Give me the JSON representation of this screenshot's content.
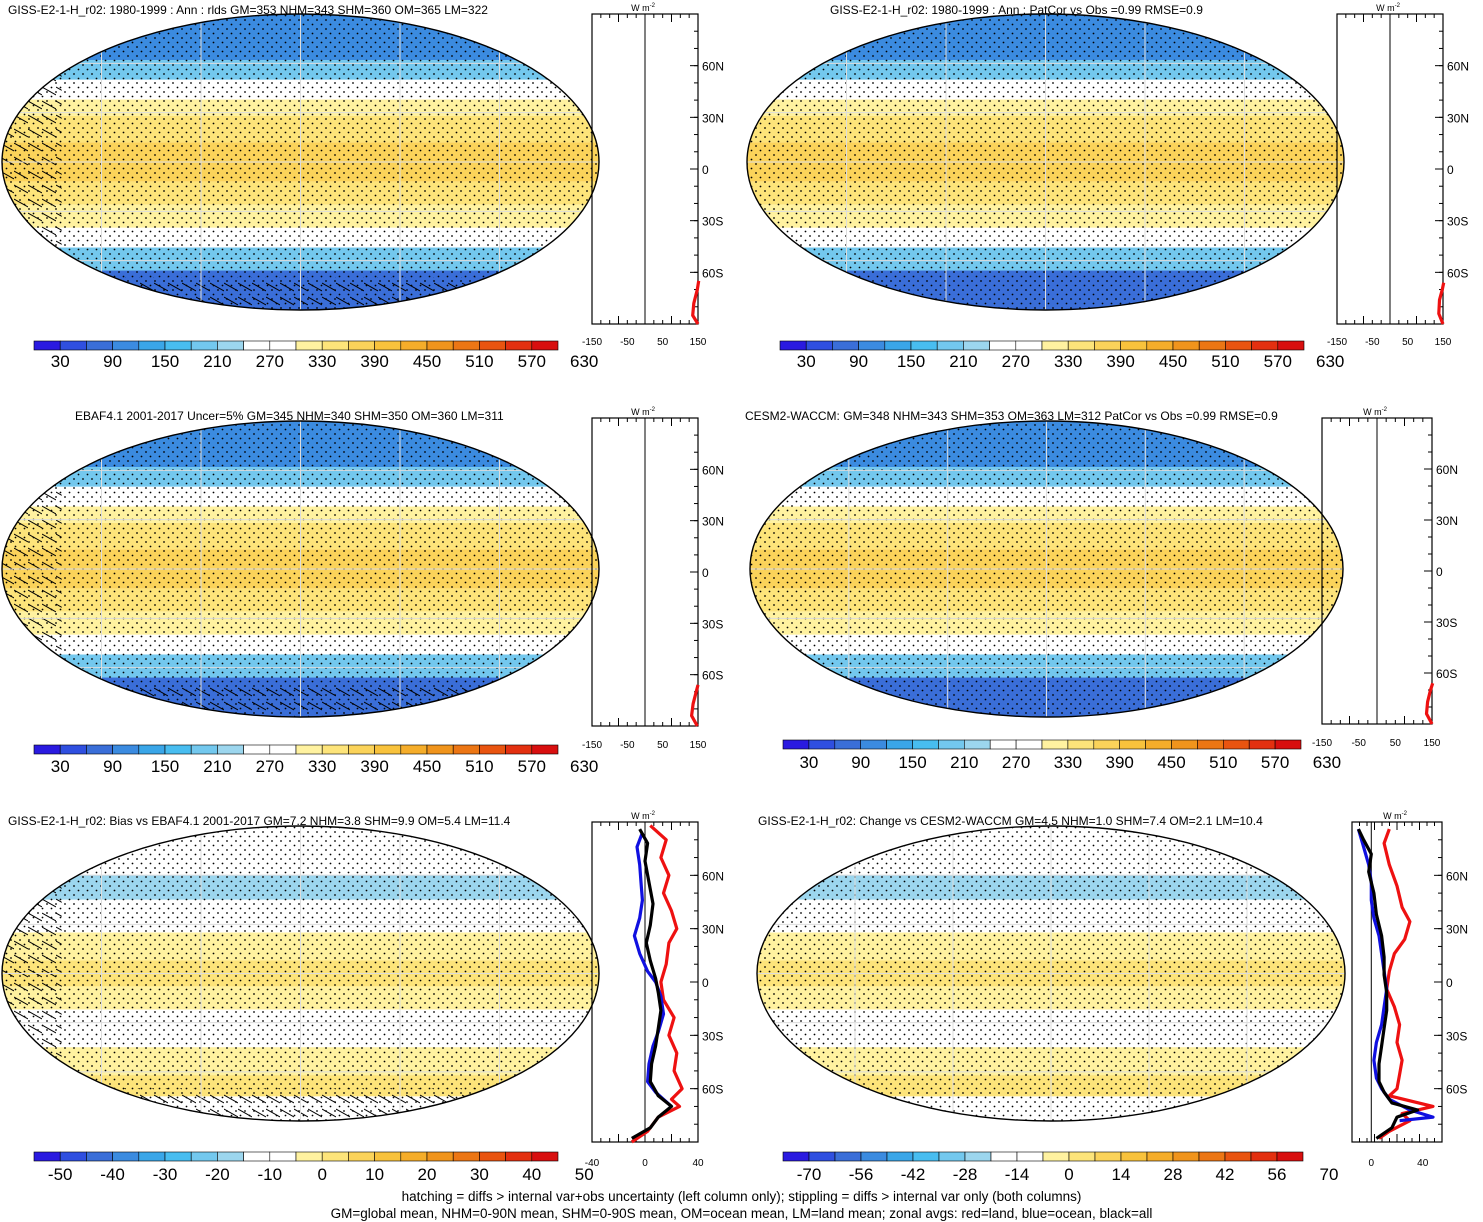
{
  "footer": {
    "line1": "hatching = diffs > internal var+obs uncertainty (left column only); stippling = diffs > internal var only (both columns)",
    "line2": "GM=global mean, NHM=0-90N mean, SHM=0-90S mean, OM=ocean mean, LM=land mean; zonal avgs: red=land, blue=ocean, black=all"
  },
  "colors": {
    "ocean_series": "#1010e0",
    "land_series": "#ee1111",
    "all_series": "#000000",
    "abs_scale": [
      "#2a1ae0",
      "#2f4fe0",
      "#3a6ed8",
      "#3b8be0",
      "#3aa6e8",
      "#48bdf0",
      "#73c8ee",
      "#9cd6ee",
      "#ffffff",
      "#ffffff",
      "#fff2a0",
      "#fde47a",
      "#fbd35a",
      "#f8c23c",
      "#f5ad2a",
      "#f0941c",
      "#ec7614",
      "#e95410",
      "#e33010",
      "#d80f0f"
    ],
    "diff_scale": [
      "#2a1ae0",
      "#2f4fe0",
      "#3a6ed8",
      "#3b8be0",
      "#3aa6e8",
      "#48bdf0",
      "#73c8ee",
      "#9cd6ee",
      "#ffffff",
      "#ffffff",
      "#fff2a0",
      "#fde47a",
      "#fbd35a",
      "#f8c23c",
      "#f5ad2a",
      "#f0941c",
      "#ec7614",
      "#e95410",
      "#e33010",
      "#d80f0f"
    ]
  },
  "chart_data": [
    {
      "type": "heatmap",
      "title": "GISS-E2-1-H_r02: 1980-1999 : Ann : rlds GM=353 NHM=343 SHM=360 OM=365 LM=322",
      "colorbar_ticks": [
        "30",
        "90",
        "150",
        "210",
        "270",
        "330",
        "390",
        "450",
        "510",
        "570",
        "630"
      ],
      "zonal_profile": {
        "unit_label": "W m-2",
        "xticks": [
          "-150",
          "-50",
          "50",
          "150"
        ],
        "yticks": [
          "60N",
          "30N",
          "0",
          "30S",
          "60S"
        ],
        "xlim": [
          -150,
          150
        ],
        "series": [
          {
            "color": "land",
            "values": [
              [
                150,
                -90
              ],
              [
                135,
                -85
              ],
              [
                138,
                -78
              ],
              [
                148,
                -70
              ],
              [
                152,
                -65
              ]
            ]
          }
        ]
      }
    },
    {
      "type": "heatmap",
      "title": "GISS-E2-1-H_r02: 1980-1999 : Ann : PatCor vs Obs =0.99 RMSE=0.9",
      "colorbar_ticks": [
        "30",
        "90",
        "150",
        "210",
        "270",
        "330",
        "390",
        "450",
        "510",
        "570",
        "630"
      ],
      "zonal_profile": {
        "unit_label": "W m-2",
        "xticks": [
          "-150",
          "-50",
          "50",
          "150"
        ],
        "yticks": [
          "60N",
          "30N",
          "0",
          "30S",
          "60S"
        ],
        "xlim": [
          -150,
          150
        ],
        "series": [
          {
            "color": "land",
            "values": [
              [
                150,
                -90
              ],
              [
                138,
                -84
              ],
              [
                140,
                -76
              ],
              [
                148,
                -70
              ],
              [
                152,
                -66
              ]
            ]
          }
        ]
      }
    },
    {
      "type": "heatmap",
      "title": "EBAF4.1 2001-2017 Uncer=5% GM=345 NHM=340 SHM=350 OM=360 LM=311",
      "colorbar_ticks": [
        "30",
        "90",
        "150",
        "210",
        "270",
        "330",
        "390",
        "450",
        "510",
        "570",
        "630"
      ],
      "zonal_profile": {
        "unit_label": "W m-2",
        "xticks": [
          "-150",
          "-50",
          "50",
          "150"
        ],
        "yticks": [
          "60N",
          "30N",
          "0",
          "30S",
          "60S"
        ],
        "xlim": [
          -150,
          150
        ],
        "series": [
          {
            "color": "land",
            "values": [
              [
                148,
                -90
              ],
              [
                132,
                -84
              ],
              [
                136,
                -77
              ],
              [
                145,
                -70
              ],
              [
                150,
                -66
              ]
            ]
          }
        ]
      }
    },
    {
      "type": "heatmap",
      "title": "CESM2-WACCM: GM=348 NHM=343 SHM=353 OM=363 LM=312 PatCor vs Obs =0.99 RMSE=0.9",
      "colorbar_ticks": [
        "30",
        "90",
        "150",
        "210",
        "270",
        "330",
        "390",
        "450",
        "510",
        "570",
        "630"
      ],
      "zonal_profile": {
        "unit_label": "W m-2",
        "xticks": [
          "-150",
          "-50",
          "50",
          "150"
        ],
        "yticks": [
          "60N",
          "30N",
          "0",
          "30S",
          "60S"
        ],
        "xlim": [
          -150,
          150
        ],
        "series": [
          {
            "color": "land",
            "values": [
              [
                150,
                -90
              ],
              [
                135,
                -84
              ],
              [
                138,
                -77
              ],
              [
                146,
                -70
              ],
              [
                152,
                -66
              ]
            ]
          }
        ]
      }
    },
    {
      "type": "heatmap",
      "title": "GISS-E2-1-H_r02: Bias vs EBAF4.1 2001-2017 GM=7.2 NHM=3.8 SHM=9.9 OM=5.4 LM=11.4",
      "colorbar_ticks": [
        "-50",
        "-40",
        "-30",
        "-20",
        "-10",
        "0",
        "10",
        "20",
        "30",
        "40",
        "50"
      ],
      "zonal_profile": {
        "unit_label": "W m-2",
        "xticks": [
          "-40",
          "0",
          "40"
        ],
        "yticks": [
          "60N",
          "30N",
          "0",
          "30S",
          "60S"
        ],
        "xlim": [
          -40,
          40
        ],
        "series": [
          {
            "color": "land",
            "values": [
              [
                4,
                88
              ],
              [
                16,
                80
              ],
              [
                12,
                70
              ],
              [
                18,
                60
              ],
              [
                14,
                50
              ],
              [
                20,
                40
              ],
              [
                24,
                30
              ],
              [
                18,
                22
              ],
              [
                16,
                10
              ],
              [
                12,
                0
              ],
              [
                14,
                -10
              ],
              [
                22,
                -20
              ],
              [
                18,
                -30
              ],
              [
                24,
                -40
              ],
              [
                22,
                -50
              ],
              [
                28,
                -60
              ],
              [
                20,
                -66
              ],
              [
                26,
                -70
              ],
              [
                10,
                -76
              ],
              [
                2,
                -84
              ],
              [
                -10,
                -90
              ]
            ]
          },
          {
            "color": "ocean",
            "values": [
              [
                -2,
                84
              ],
              [
                -6,
                76
              ],
              [
                -4,
                66
              ],
              [
                -3,
                56
              ],
              [
                -2,
                46
              ],
              [
                -4,
                36
              ],
              [
                -8,
                26
              ],
              [
                -4,
                16
              ],
              [
                2,
                6
              ],
              [
                8,
                0
              ],
              [
                12,
                -8
              ],
              [
                14,
                -18
              ],
              [
                10,
                -28
              ],
              [
                6,
                -36
              ],
              [
                3,
                -46
              ],
              [
                2,
                -56
              ],
              [
                8,
                -62
              ],
              [
                14,
                -66
              ],
              [
                20,
                -70
              ]
            ]
          },
          {
            "color": "all",
            "values": [
              [
                -4,
                86
              ],
              [
                2,
                78
              ],
              [
                0,
                68
              ],
              [
                3,
                56
              ],
              [
                6,
                44
              ],
              [
                4,
                32
              ],
              [
                1,
                22
              ],
              [
                4,
                12
              ],
              [
                8,
                2
              ],
              [
                10,
                -6
              ],
              [
                12,
                -16
              ],
              [
                10,
                -26
              ],
              [
                8,
                -36
              ],
              [
                5,
                -46
              ],
              [
                4,
                -56
              ],
              [
                10,
                -64
              ],
              [
                20,
                -70
              ],
              [
                10,
                -76
              ],
              [
                4,
                -82
              ],
              [
                -10,
                -88
              ]
            ]
          }
        ]
      }
    },
    {
      "type": "heatmap",
      "title": "GISS-E2-1-H_r02: Change vs CESM2-WACCM GM=4.5 NHM=1.0 SHM=7.4 OM=2.1 LM=10.4",
      "colorbar_ticks": [
        "-70",
        "-56",
        "-42",
        "-28",
        "-14",
        "0",
        "14",
        "28",
        "42",
        "56",
        "70"
      ],
      "zonal_profile": {
        "unit_label": "W m-2",
        "xticks": [
          "0",
          "40"
        ],
        "yticks": [
          "60N",
          "30N",
          "0",
          "30S",
          "60S"
        ],
        "xlim": [
          -15,
          55
        ],
        "series": [
          {
            "color": "land",
            "values": [
              [
                14,
                86
              ],
              [
                10,
                78
              ],
              [
                14,
                66
              ],
              [
                20,
                54
              ],
              [
                24,
                42
              ],
              [
                30,
                34
              ],
              [
                26,
                24
              ],
              [
                18,
                16
              ],
              [
                14,
                6
              ],
              [
                12,
                -4
              ],
              [
                18,
                -14
              ],
              [
                22,
                -24
              ],
              [
                20,
                -34
              ],
              [
                24,
                -44
              ],
              [
                22,
                -52
              ],
              [
                20,
                -60
              ],
              [
                14,
                -64
              ],
              [
                48,
                -70
              ],
              [
                24,
                -74
              ],
              [
                30,
                -78
              ],
              [
                14,
                -84
              ],
              [
                6,
                -88
              ]
            ]
          },
          {
            "color": "ocean",
            "values": [
              [
                -10,
                86
              ],
              [
                -6,
                76
              ],
              [
                -2,
                66
              ],
              [
                0,
                56
              ],
              [
                0,
                46
              ],
              [
                2,
                36
              ],
              [
                6,
                26
              ],
              [
                8,
                16
              ],
              [
                10,
                6
              ],
              [
                12,
                -4
              ],
              [
                10,
                -14
              ],
              [
                8,
                -24
              ],
              [
                4,
                -34
              ],
              [
                2,
                -44
              ],
              [
                4,
                -54
              ],
              [
                8,
                -60
              ],
              [
                14,
                -66
              ],
              [
                30,
                -72
              ],
              [
                48,
                -76
              ],
              [
                22,
                -78
              ]
            ]
          },
          {
            "color": "all",
            "values": [
              [
                -10,
                86
              ],
              [
                -6,
                80
              ],
              [
                0,
                72
              ],
              [
                -2,
                62
              ],
              [
                2,
                50
              ],
              [
                4,
                38
              ],
              [
                8,
                26
              ],
              [
                10,
                14
              ],
              [
                10,
                4
              ],
              [
                12,
                -6
              ],
              [
                12,
                -16
              ],
              [
                10,
                -26
              ],
              [
                8,
                -36
              ],
              [
                6,
                -46
              ],
              [
                6,
                -56
              ],
              [
                10,
                -62
              ],
              [
                16,
                -68
              ],
              [
                36,
                -72
              ],
              [
                20,
                -76
              ],
              [
                16,
                -82
              ],
              [
                4,
                -88
              ]
            ]
          }
        ]
      }
    }
  ]
}
